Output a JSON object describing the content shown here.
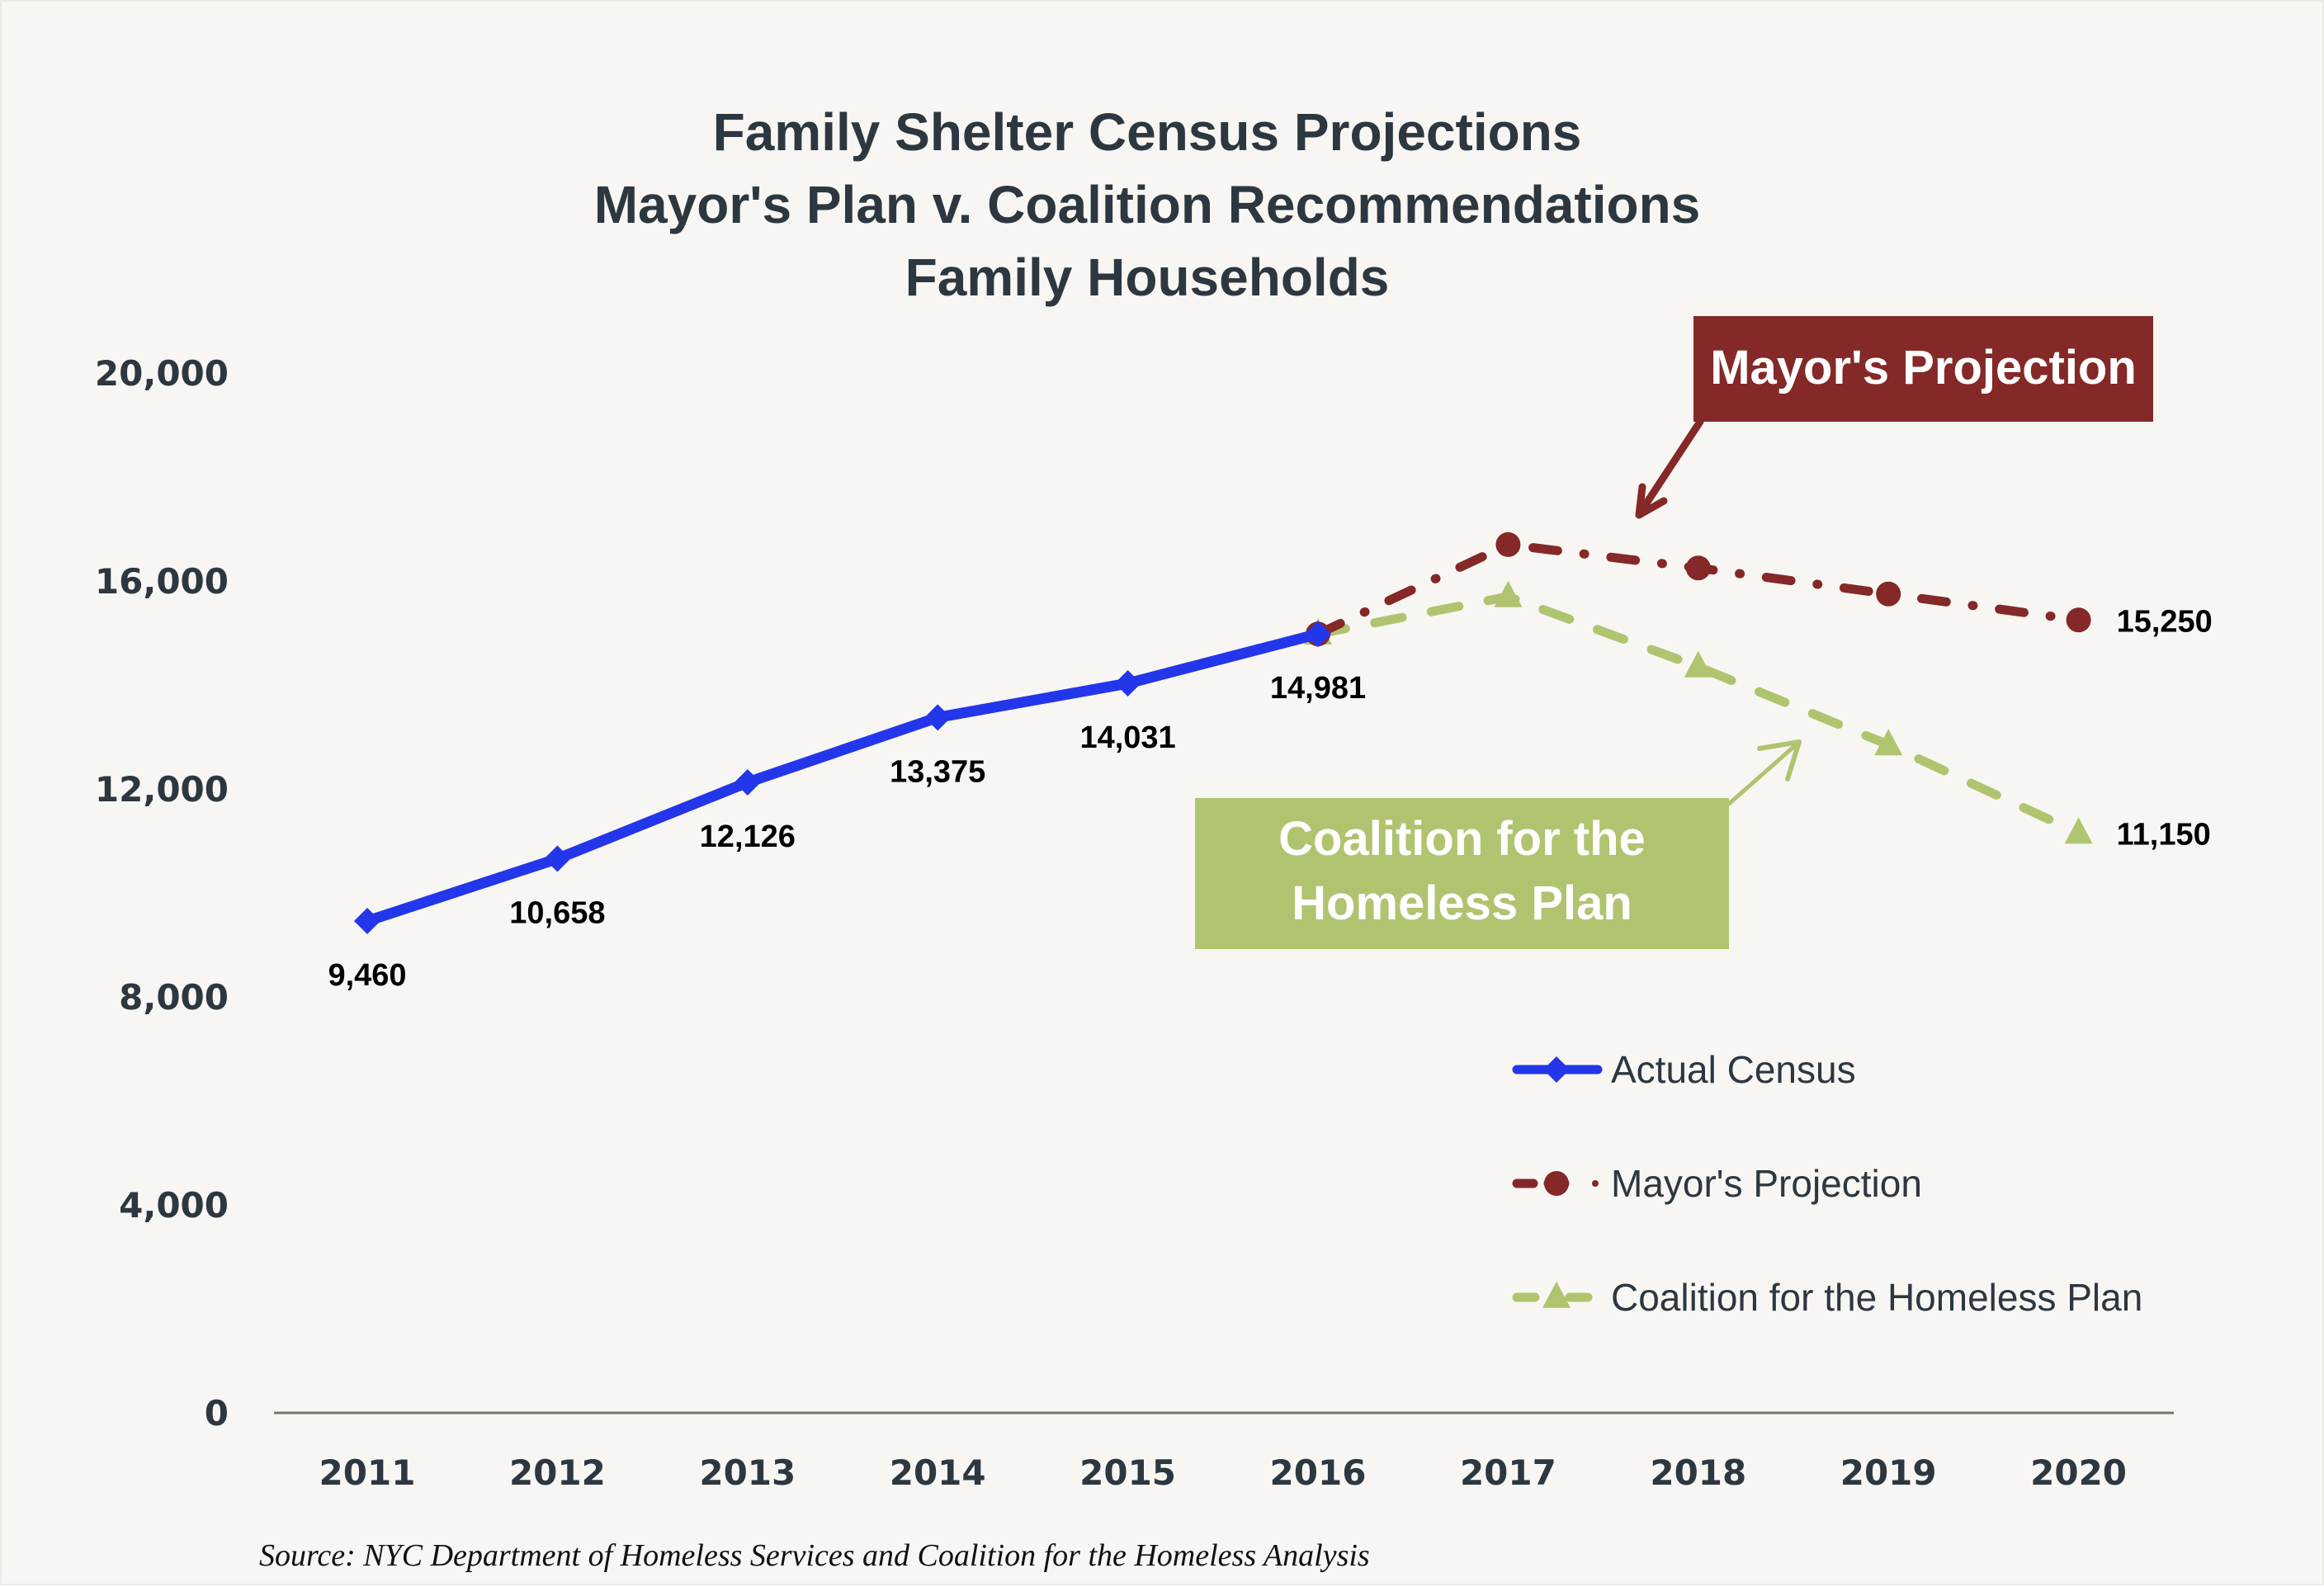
{
  "chart_data": {
    "type": "line",
    "title": [
      "Family Shelter Census Projections",
      "Mayor's Plan v. Coalition Recommendations",
      "Family Households"
    ],
    "xlabel": "",
    "ylabel": "",
    "categories": [
      "2011",
      "2012",
      "2013",
      "2014",
      "2015",
      "2016",
      "2017",
      "2018",
      "2019",
      "2020"
    ],
    "ylim": [
      0,
      20000
    ],
    "yticks": [
      0,
      4000,
      8000,
      12000,
      16000,
      20000
    ],
    "ytick_labels": [
      "0",
      "4,000",
      "8,000",
      "12,000",
      "16,000",
      "20,000"
    ],
    "grid": false,
    "legend_position": "bottom-right",
    "series": [
      {
        "name": "Actual Census",
        "color": "#2436ea",
        "marker": "diamond",
        "line_style": "solid",
        "values": [
          9460,
          10658,
          12126,
          13375,
          14031,
          14981,
          null,
          null,
          null,
          null
        ],
        "labels": [
          "9,460",
          "10,658",
          "12,126",
          "13,375",
          "14,031",
          "14,981",
          "",
          "",
          "",
          ""
        ]
      },
      {
        "name": "Mayor's Projection",
        "color": "#842828",
        "marker": "circle",
        "line_style": "dash-dot",
        "values": [
          null,
          null,
          null,
          null,
          null,
          14981,
          16700,
          16250,
          15750,
          15250
        ],
        "labels": [
          "",
          "",
          "",
          "",
          "",
          "",
          "",
          "",
          "",
          "15,250"
        ]
      },
      {
        "name": "Coalition for the Homeless Plan",
        "color": "#b0c470",
        "marker": "triangle",
        "line_style": "dashed",
        "values": [
          null,
          null,
          null,
          null,
          null,
          14981,
          15700,
          14350,
          12850,
          11150
        ],
        "labels": [
          "",
          "",
          "",
          "",
          "",
          "",
          "",
          "",
          "",
          "11,150"
        ]
      }
    ],
    "annotations": [
      {
        "text": "Mayor's Projection",
        "box_color": "#842828",
        "text_color": "#ffffff",
        "points_to": "Mayor's Projection"
      },
      {
        "text": [
          "Coalition for the",
          "Homeless Plan"
        ],
        "box_color": "#b0c470",
        "text_color": "#ffffff",
        "points_to": "Coalition for the Homeless Plan"
      }
    ],
    "source": "Source:  NYC Department of Homeless Services and Coalition for the Homeless Analysis"
  },
  "colors": {
    "background": "#f8f6f3",
    "text": "#2d3740",
    "axis": "#777770"
  }
}
